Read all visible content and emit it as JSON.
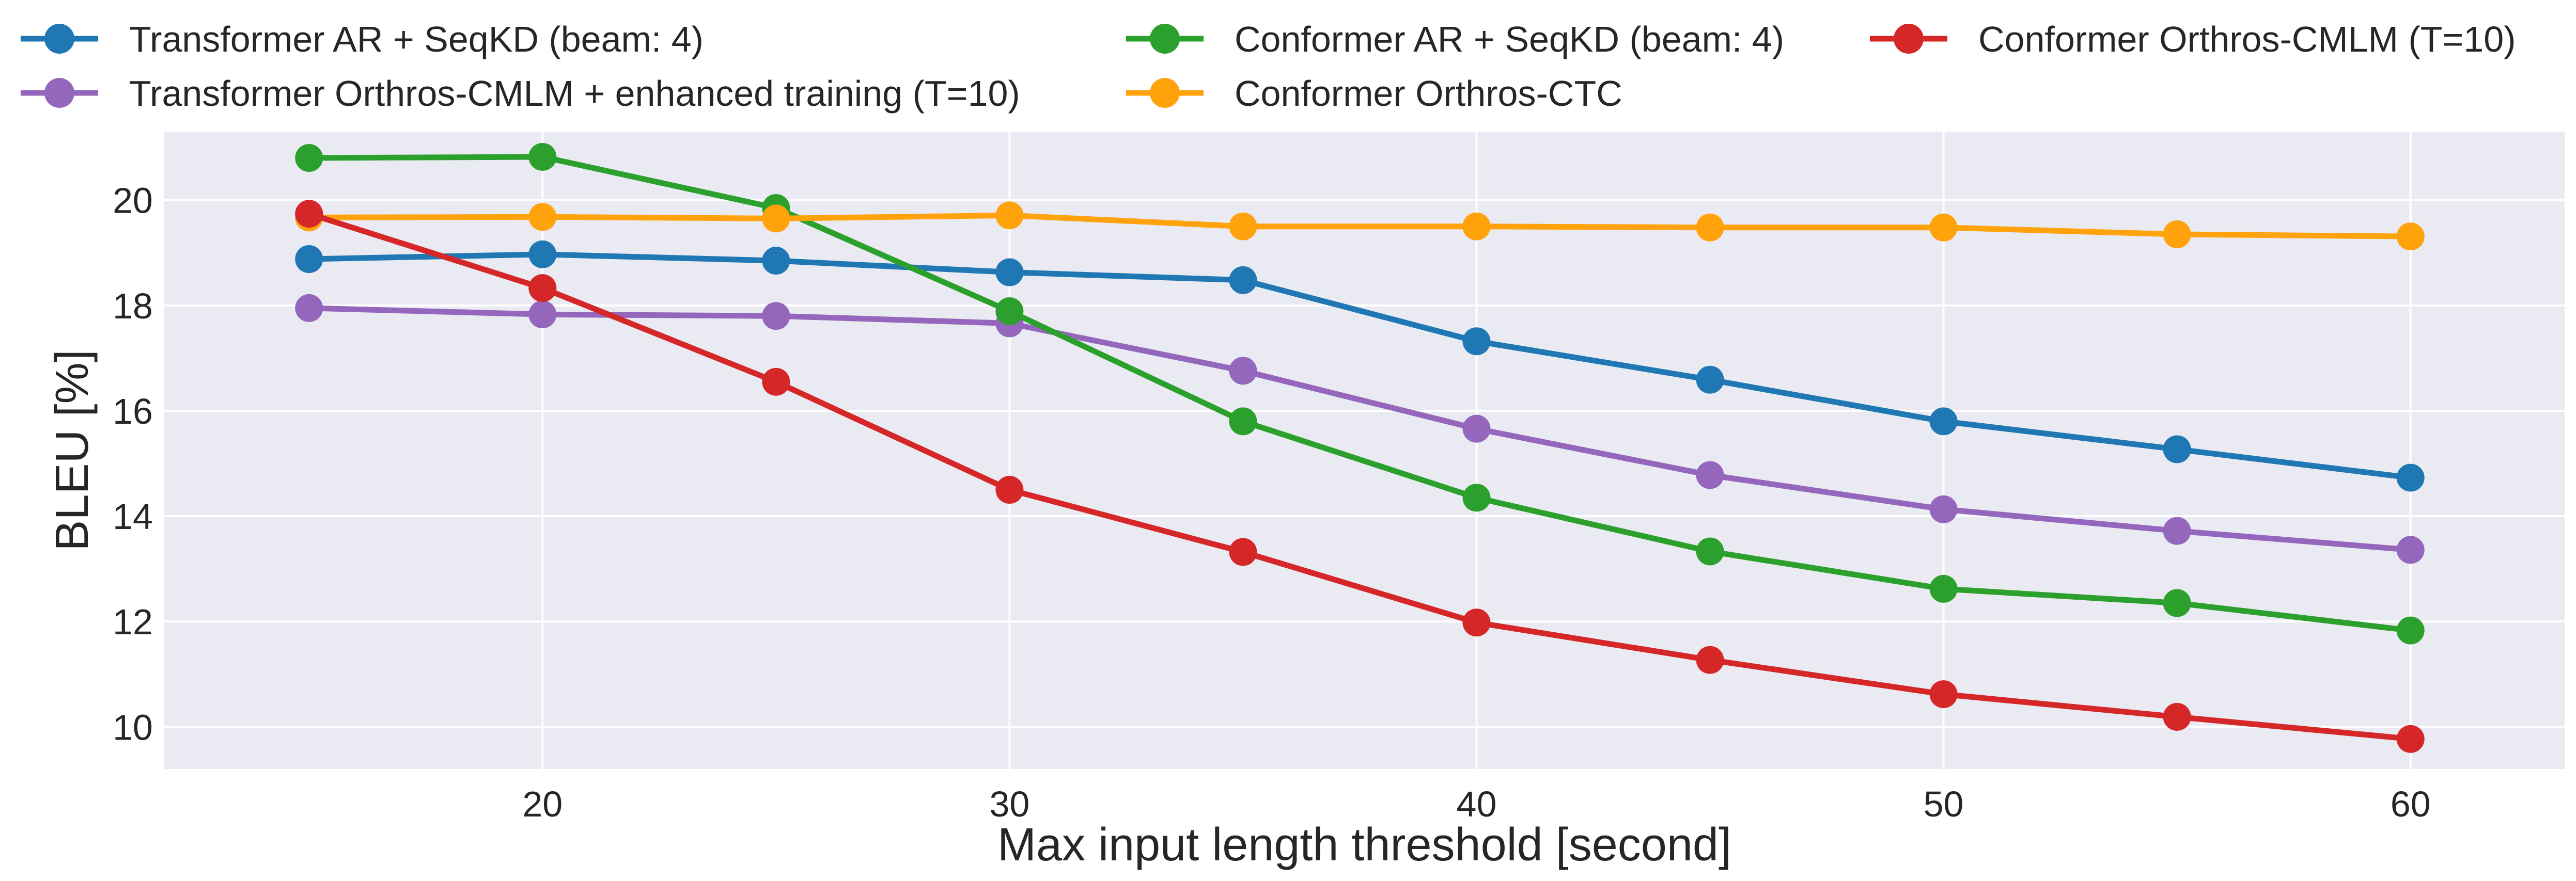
{
  "chart_data": {
    "type": "line",
    "xlabel": "Max input length threshold [second]",
    "ylabel": "BLEU [%]",
    "x": [
      15,
      20,
      25,
      30,
      35,
      40,
      45,
      50,
      55,
      60
    ],
    "x_ticks": [
      20,
      30,
      40,
      50,
      60
    ],
    "y_ticks": [
      10,
      12,
      14,
      16,
      18,
      20
    ],
    "xlim": [
      11.9,
      63.3
    ],
    "ylim": [
      9.2,
      21.3
    ],
    "grid": true,
    "legend_position": "top",
    "background": "#eaeaf2",
    "series": [
      {
        "name": "Transformer AR + SeqKD (beam: 4)",
        "color": "#1f77b4",
        "values": [
          18.88,
          18.97,
          18.85,
          18.63,
          18.48,
          17.32,
          16.59,
          15.8,
          15.27,
          14.73
        ]
      },
      {
        "name": "Transformer Orthros-CMLM + enhanced training (T=10)",
        "color": "#9467bd",
        "values": [
          17.95,
          17.83,
          17.8,
          17.66,
          16.76,
          15.66,
          14.78,
          14.13,
          13.72,
          13.36
        ]
      },
      {
        "name": "Conformer AR + SeqKD (beam: 4)",
        "color": "#2ca02c",
        "values": [
          20.8,
          20.82,
          19.85,
          17.89,
          15.8,
          14.35,
          13.33,
          12.62,
          12.35,
          11.83
        ]
      },
      {
        "name": "Conformer Orthros-CTC",
        "color": "#ffa20b",
        "values": [
          19.67,
          19.68,
          19.65,
          19.71,
          19.5,
          19.5,
          19.48,
          19.48,
          19.35,
          19.31
        ]
      },
      {
        "name": "Conformer Orthros-CMLM (T=10)",
        "color": "#d62728",
        "values": [
          19.74,
          18.33,
          16.55,
          14.5,
          13.32,
          11.98,
          11.27,
          10.62,
          10.19,
          9.77
        ]
      }
    ]
  }
}
